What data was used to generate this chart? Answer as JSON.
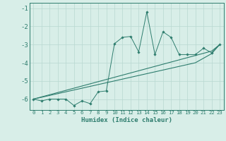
{
  "xlabel": "Humidex (Indice chaleur)",
  "ylabel": "",
  "x_data": [
    0,
    1,
    2,
    3,
    4,
    5,
    6,
    7,
    8,
    9,
    10,
    11,
    12,
    13,
    14,
    15,
    16,
    17,
    18,
    19,
    20,
    21,
    22,
    23
  ],
  "y_jagged": [
    -6.0,
    -6.1,
    -6.0,
    -6.0,
    -6.0,
    -6.35,
    -6.1,
    -6.25,
    -5.6,
    -5.55,
    -2.95,
    -2.6,
    -2.55,
    -3.4,
    -1.2,
    -3.55,
    -2.3,
    -2.6,
    -3.55,
    -3.55,
    -3.55,
    -3.2,
    -3.45,
    -3.0
  ],
  "y_trend1": [
    -6.0,
    -5.88,
    -5.76,
    -5.64,
    -5.52,
    -5.4,
    -5.28,
    -5.16,
    -5.04,
    -4.92,
    -4.8,
    -4.68,
    -4.56,
    -4.44,
    -4.32,
    -4.2,
    -4.08,
    -3.96,
    -3.84,
    -3.72,
    -3.6,
    -3.48,
    -3.36,
    -3.0
  ],
  "y_trend2": [
    -6.0,
    -5.9,
    -5.8,
    -5.7,
    -5.6,
    -5.5,
    -5.4,
    -5.3,
    -5.2,
    -5.1,
    -5.0,
    -4.9,
    -4.8,
    -4.7,
    -4.6,
    -4.5,
    -4.4,
    -4.3,
    -4.2,
    -4.1,
    -4.0,
    -3.75,
    -3.5,
    -3.0
  ],
  "ylim": [
    -6.6,
    -0.7
  ],
  "xlim": [
    -0.5,
    23.5
  ],
  "yticks": [
    -6,
    -5,
    -4,
    -3,
    -2,
    -1
  ],
  "xticks": [
    0,
    1,
    2,
    3,
    4,
    5,
    6,
    7,
    8,
    9,
    10,
    11,
    12,
    13,
    14,
    15,
    16,
    17,
    18,
    19,
    20,
    21,
    22,
    23
  ],
  "line_color": "#2e7d6e",
  "bg_color": "#d8eee8",
  "grid_color": "#b8d8d0"
}
